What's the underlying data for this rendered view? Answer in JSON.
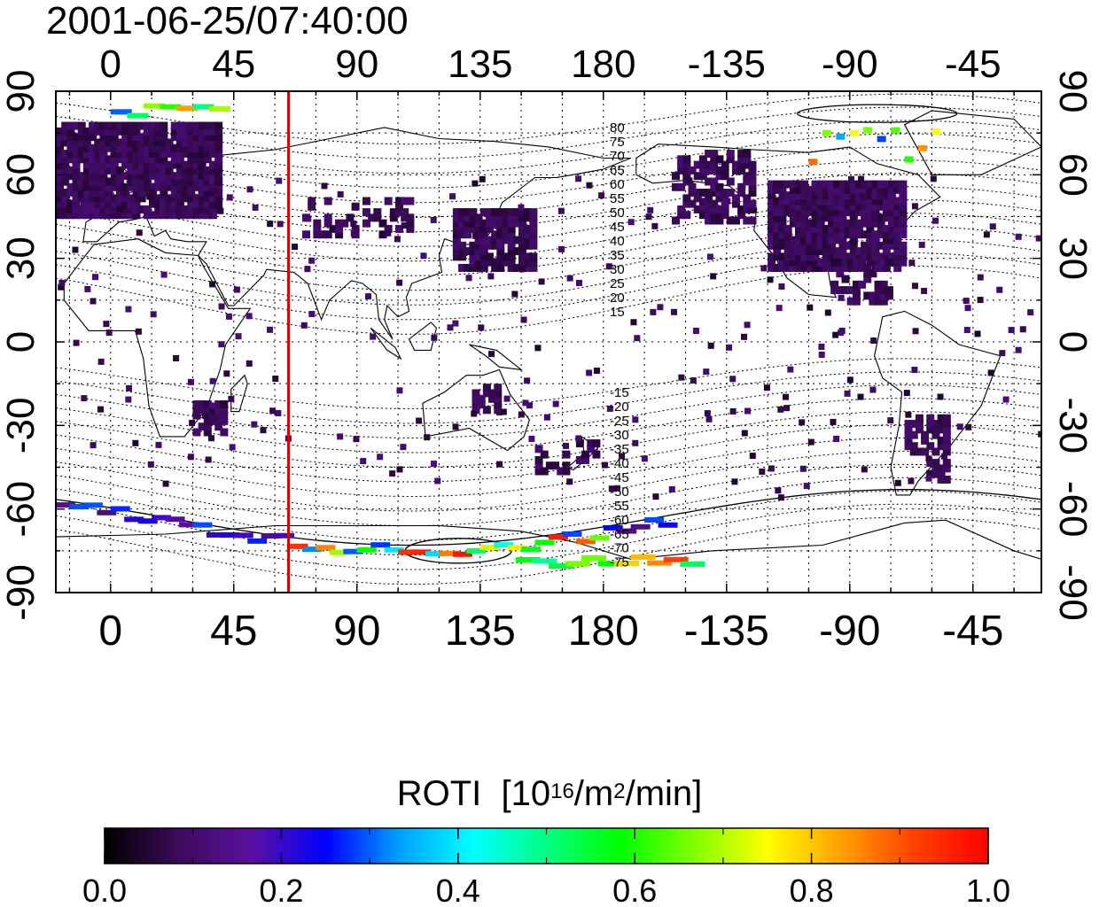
{
  "title": "2001-06-25/07:40:00",
  "map": {
    "x_ticks": [
      {
        "lon": 0,
        "label": "0"
      },
      {
        "lon": 45,
        "label": "45"
      },
      {
        "lon": 90,
        "label": "90"
      },
      {
        "lon": 135,
        "label": "135"
      },
      {
        "lon": 180,
        "label": "180"
      },
      {
        "lon": 225,
        "label": "-135"
      },
      {
        "lon": 270,
        "label": "-90"
      },
      {
        "lon": 315,
        "label": "-45"
      }
    ],
    "y_ticks": [
      {
        "lat": 90,
        "label": "90"
      },
      {
        "lat": 60,
        "label": "60"
      },
      {
        "lat": 30,
        "label": "30"
      },
      {
        "lat": 0,
        "label": "0"
      },
      {
        "lat": -30,
        "label": "-30"
      },
      {
        "lat": -60,
        "label": "-60"
      },
      {
        "lat": -90,
        "label": "-90"
      }
    ],
    "meridian_lon": 65,
    "meridian_color": "#d40000",
    "contour_labels_north": [
      "80",
      "75",
      "70",
      "65",
      "60",
      "55",
      "50",
      "45",
      "40",
      "35",
      "30",
      "25",
      "20",
      "15"
    ],
    "contour_labels_south": [
      "-15",
      "-20",
      "-25",
      "-30",
      "-35",
      "-40",
      "-45",
      "-50",
      "-55",
      "-60",
      "-65",
      "-70",
      "-75"
    ]
  },
  "colorbar": {
    "title_text": "ROTI",
    "unit_open": "[10",
    "unit_sup1": "16",
    "unit_mid": "/m",
    "unit_sup2": "2",
    "unit_close": "/min]",
    "ticks": [
      {
        "value": 0.0,
        "label": "0.0"
      },
      {
        "value": 0.2,
        "label": "0.2"
      },
      {
        "value": 0.4,
        "label": "0.4"
      },
      {
        "value": 0.6,
        "label": "0.6"
      },
      {
        "value": 0.8,
        "label": "0.8"
      },
      {
        "value": 1.0,
        "label": "1.0"
      }
    ],
    "range": [
      0.0,
      1.0
    ],
    "colors": [
      "#000000",
      "#3c0a5a",
      "#5a10a0",
      "#0000ff",
      "#00a0ff",
      "#00ffff",
      "#00ff80",
      "#00ff00",
      "#80ff00",
      "#ffff00",
      "#ffa000",
      "#ff4000",
      "#ff0000"
    ]
  }
}
